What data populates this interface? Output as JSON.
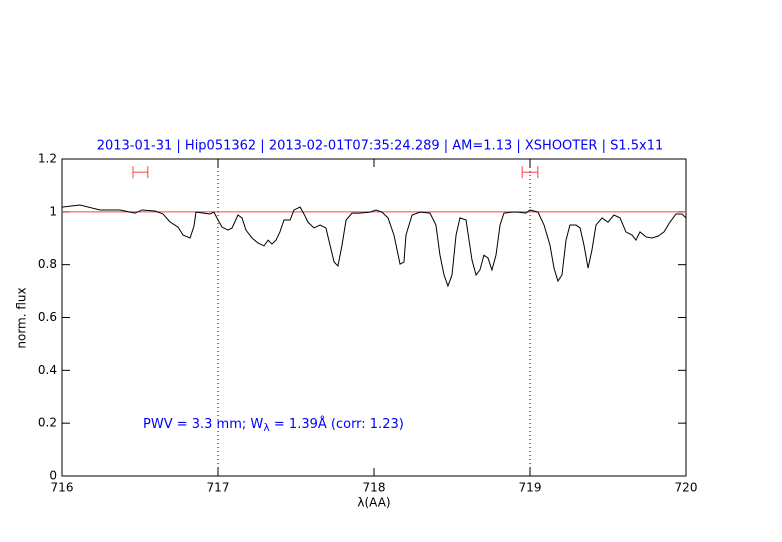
{
  "chart_data": {
    "type": "line",
    "title": "2013-01-31 | Hip051362 | 2013-02-01T07:35:24.289 | AM=1.13 | XSHOOTER | S1.5x11",
    "xlabel": "λ(AA)",
    "ylabel": "norm. flux",
    "annotation": [
      "PWV = 3.3 mm; W",
      "λ",
      " = 1.39Å (corr: 1.23)"
    ],
    "xlim": [
      716,
      720
    ],
    "ylim": [
      0,
      1.2
    ],
    "xticks": [
      716,
      717,
      718,
      719,
      720
    ],
    "yticks": [
      0,
      0.2,
      0.4,
      0.6,
      0.8,
      1,
      1.2
    ],
    "reference_line": 1,
    "reference_color": "#ff4040",
    "vlines": [
      717,
      719
    ],
    "intervals": [
      [
        716.455,
        716.55
      ],
      [
        718.95,
        719.05
      ]
    ],
    "interval_y": 1.15,
    "series": [
      {
        "color": "#000000",
        "x": [
          716.0,
          716.115,
          716.244,
          716.372,
          716.468,
          716.513,
          716.596,
          716.647,
          716.692,
          716.744,
          716.776,
          716.821,
          716.846,
          716.859,
          716.949,
          716.974,
          717.0,
          717.026,
          717.064,
          717.09,
          717.128,
          717.154,
          717.179,
          717.218,
          717.256,
          717.295,
          717.321,
          717.346,
          717.372,
          717.397,
          717.423,
          717.462,
          717.487,
          717.526,
          717.551,
          717.577,
          717.615,
          717.654,
          717.692,
          717.718,
          717.744,
          717.769,
          717.795,
          717.821,
          717.859,
          717.91,
          717.974,
          718.013,
          718.051,
          718.09,
          718.128,
          718.167,
          718.192,
          718.205,
          718.244,
          718.295,
          718.359,
          718.397,
          718.423,
          718.449,
          718.474,
          718.5,
          718.526,
          718.551,
          718.59,
          718.628,
          718.654,
          718.679,
          718.705,
          718.731,
          718.756,
          718.782,
          718.808,
          718.833,
          718.885,
          718.923,
          718.974,
          719.0,
          719.051,
          719.09,
          719.128,
          719.154,
          719.179,
          719.205,
          719.231,
          719.256,
          719.295,
          719.321,
          719.346,
          719.372,
          719.397,
          719.423,
          719.462,
          719.5,
          719.538,
          719.577,
          719.615,
          719.654,
          719.679,
          719.705,
          719.744,
          719.782,
          719.821,
          719.859,
          719.897,
          719.936,
          719.974,
          720.0
        ],
        "values": [
          1.018,
          1.026,
          1.007,
          1.007,
          0.995,
          1.007,
          1.003,
          0.992,
          0.962,
          0.942,
          0.912,
          0.901,
          0.946,
          0.999,
          0.992,
          0.999,
          0.969,
          0.942,
          0.931,
          0.939,
          0.988,
          0.977,
          0.931,
          0.901,
          0.882,
          0.871,
          0.893,
          0.878,
          0.893,
          0.924,
          0.969,
          0.969,
          1.007,
          1.018,
          0.992,
          0.961,
          0.939,
          0.95,
          0.939,
          0.874,
          0.81,
          0.795,
          0.874,
          0.969,
          0.995,
          0.995,
          0.999,
          1.007,
          0.999,
          0.977,
          0.912,
          0.802,
          0.81,
          0.912,
          0.988,
          0.999,
          0.995,
          0.95,
          0.836,
          0.761,
          0.719,
          0.761,
          0.912,
          0.977,
          0.969,
          0.818,
          0.761,
          0.78,
          0.836,
          0.825,
          0.78,
          0.836,
          0.95,
          0.995,
          0.999,
          0.999,
          0.995,
          1.007,
          0.999,
          0.95,
          0.874,
          0.787,
          0.738,
          0.761,
          0.893,
          0.95,
          0.95,
          0.939,
          0.874,
          0.787,
          0.855,
          0.95,
          0.977,
          0.961,
          0.988,
          0.977,
          0.924,
          0.912,
          0.893,
          0.924,
          0.905,
          0.901,
          0.908,
          0.924,
          0.961,
          0.992,
          0.992,
          0.977
        ]
      }
    ]
  }
}
